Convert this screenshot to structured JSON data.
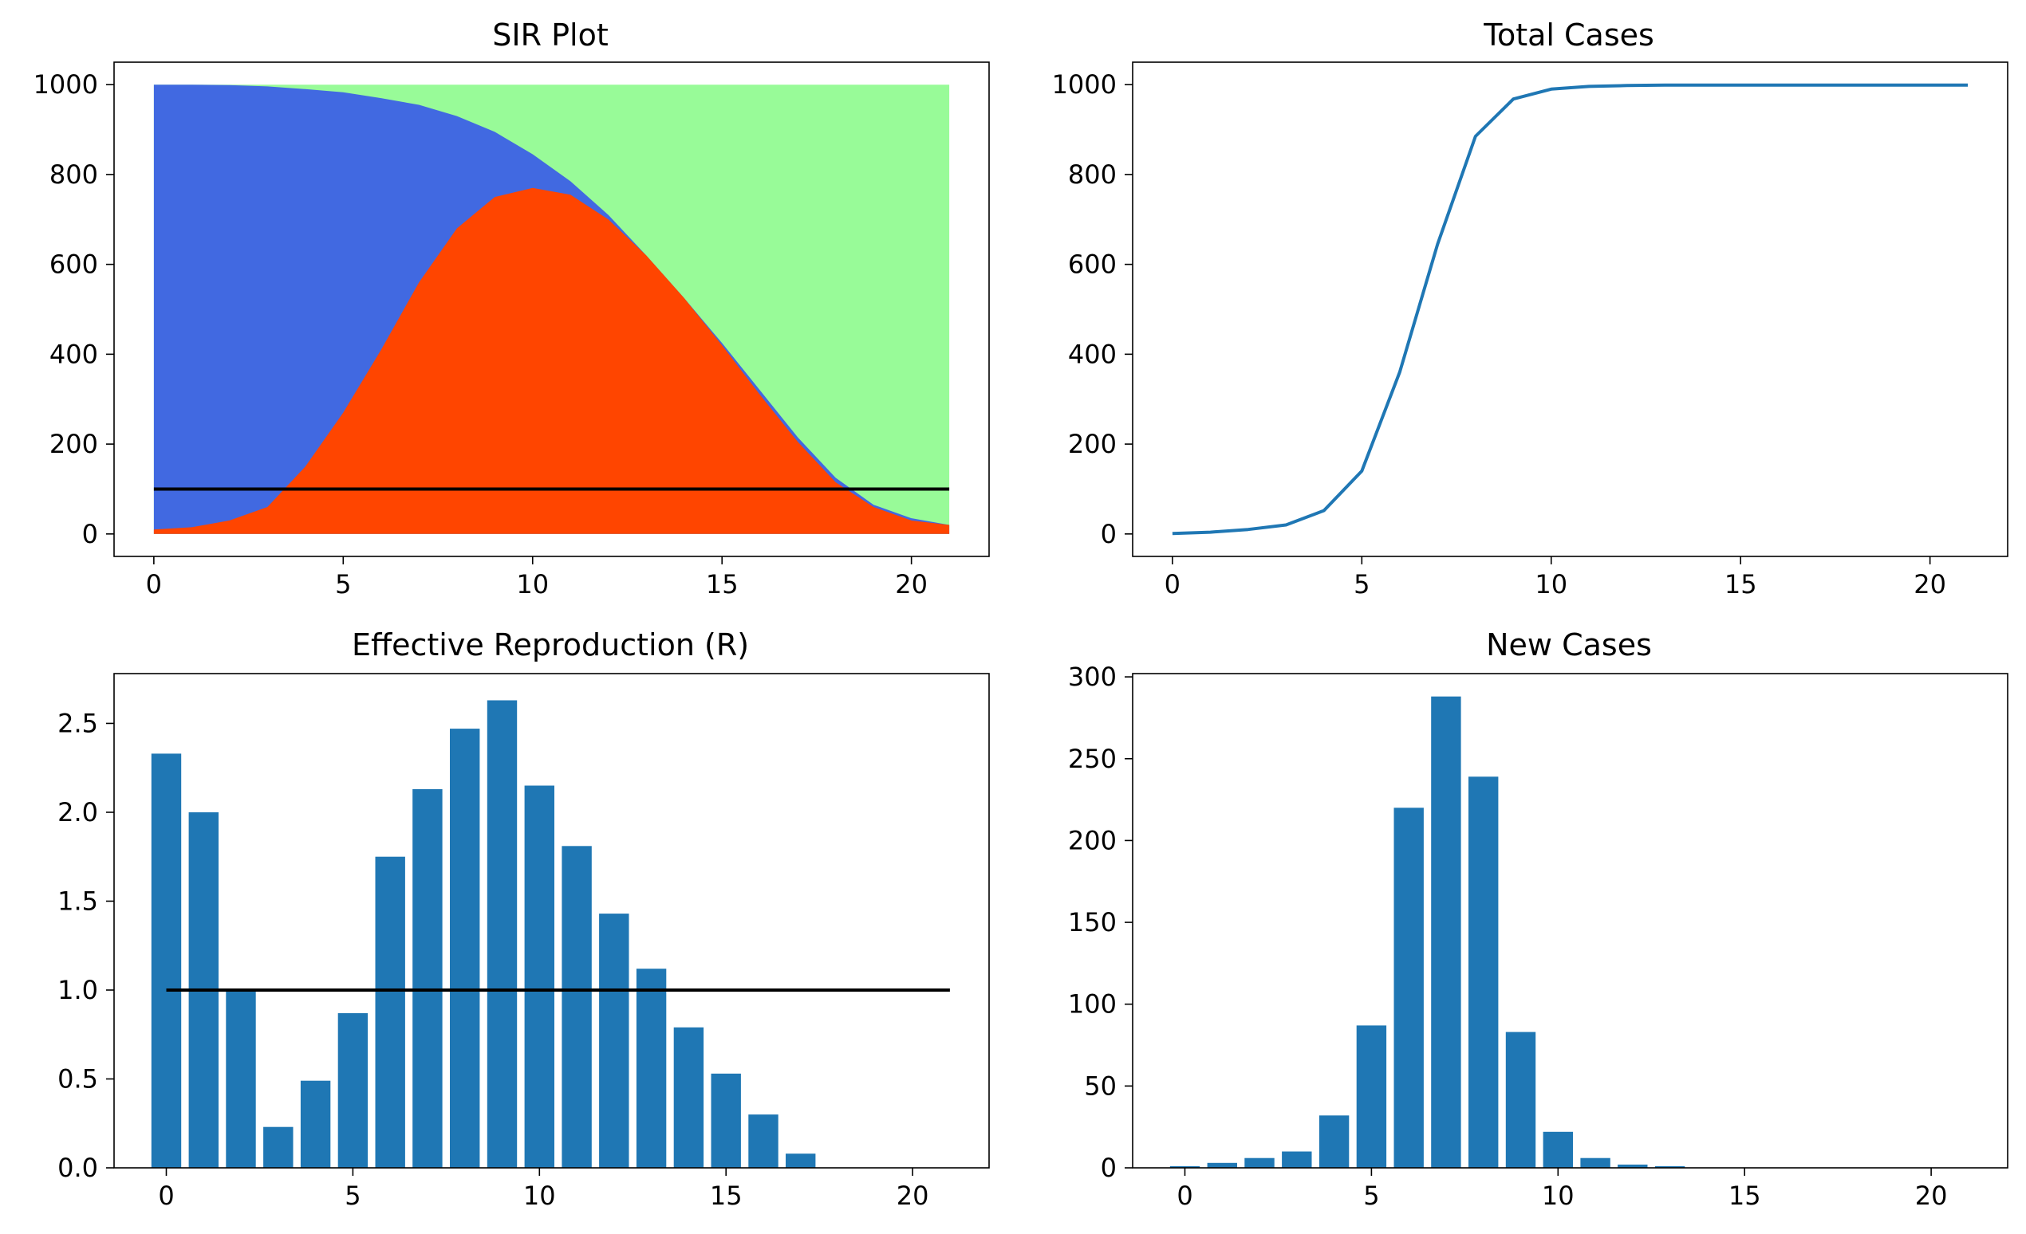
{
  "chart_data": [
    {
      "type": "area",
      "title": "SIR Plot",
      "xlim": [
        -1.05,
        22.05
      ],
      "ylim": [
        -50,
        1050
      ],
      "xticks": [
        0,
        5,
        10,
        15,
        20
      ],
      "yticks": [
        0,
        200,
        400,
        600,
        800,
        1000
      ],
      "x": [
        0,
        1,
        2,
        3,
        4,
        5,
        6,
        7,
        8,
        9,
        10,
        11,
        12,
        13,
        14,
        15,
        16,
        17,
        18,
        19,
        20,
        21
      ],
      "series": [
        {
          "key": "removed",
          "color": "#98fb98",
          "top": [
            1000,
            1000,
            1000,
            1000,
            1000,
            1000,
            1000,
            1000,
            1000,
            1000,
            1000,
            1000,
            1000,
            1000,
            1000,
            1000,
            1000,
            1000,
            1000,
            1000,
            1000,
            1000
          ]
        },
        {
          "key": "susceptible",
          "color": "#4169e1",
          "top": [
            1000,
            1000,
            999,
            996,
            990,
            983,
            970,
            955,
            930,
            895,
            845,
            785,
            710,
            620,
            525,
            425,
            320,
            215,
            125,
            65,
            35,
            20
          ]
        },
        {
          "key": "infected",
          "color": "#ff4500",
          "top": [
            10,
            15,
            30,
            60,
            150,
            270,
            410,
            560,
            680,
            750,
            770,
            755,
            700,
            620,
            525,
            420,
            310,
            205,
            115,
            60,
            30,
            20
          ]
        }
      ],
      "hline": {
        "y": 100,
        "xmin": 0,
        "xmax": 21,
        "color": "#000000"
      }
    },
    {
      "type": "line",
      "title": "Total Cases",
      "xlim": [
        -1.05,
        22.05
      ],
      "ylim": [
        -50,
        1050
      ],
      "xticks": [
        0,
        5,
        10,
        15,
        20
      ],
      "yticks": [
        0,
        200,
        400,
        600,
        800,
        1000
      ],
      "x": [
        0,
        1,
        2,
        3,
        4,
        5,
        6,
        7,
        8,
        9,
        10,
        11,
        12,
        13,
        14,
        15,
        16,
        17,
        18,
        19,
        20,
        21
      ],
      "values": [
        1,
        4,
        10,
        20,
        52,
        140,
        360,
        645,
        885,
        968,
        990,
        996,
        998,
        999,
        999,
        999,
        999,
        999,
        999,
        999,
        999,
        999
      ],
      "color": "#1f77b4"
    },
    {
      "type": "bar",
      "title": "Effective Reproduction (R)",
      "xlim": [
        -1.4,
        22.05
      ],
      "ylim": [
        0,
        2.78
      ],
      "xticks": [
        0,
        5,
        10,
        15,
        20
      ],
      "yticks": [
        0.0,
        0.5,
        1.0,
        1.5,
        2.0,
        2.5
      ],
      "ytick_labels": [
        "0.0",
        "0.5",
        "1.0",
        "1.5",
        "2.0",
        "2.5"
      ],
      "x": [
        0,
        1,
        2,
        3,
        4,
        5,
        6,
        7,
        8,
        9,
        10,
        11,
        12,
        13,
        14,
        15,
        16,
        17,
        18,
        19,
        20,
        21
      ],
      "values": [
        2.33,
        2.0,
        1.0,
        0.23,
        0.49,
        0.87,
        1.75,
        2.13,
        2.47,
        2.63,
        2.15,
        1.81,
        1.43,
        1.12,
        0.79,
        0.53,
        0.3,
        0.08,
        0,
        0,
        0,
        0
      ],
      "color": "#1f77b4",
      "hline": {
        "y": 1.0,
        "xmin": 0,
        "xmax": 21,
        "color": "#000000"
      }
    },
    {
      "type": "bar",
      "title": "New Cases",
      "xlim": [
        -1.4,
        22.05
      ],
      "ylim": [
        0,
        302
      ],
      "xticks": [
        0,
        5,
        10,
        15,
        20
      ],
      "yticks": [
        0,
        50,
        100,
        150,
        200,
        250,
        300
      ],
      "x": [
        0,
        1,
        2,
        3,
        4,
        5,
        6,
        7,
        8,
        9,
        10,
        11,
        12,
        13,
        14,
        15,
        16,
        17,
        18,
        19,
        20,
        21
      ],
      "values": [
        1,
        3,
        6,
        10,
        32,
        87,
        220,
        288,
        239,
        83,
        22,
        6,
        2,
        1,
        0,
        0,
        0,
        0,
        0,
        0,
        0,
        0
      ],
      "color": "#1f77b4"
    }
  ]
}
